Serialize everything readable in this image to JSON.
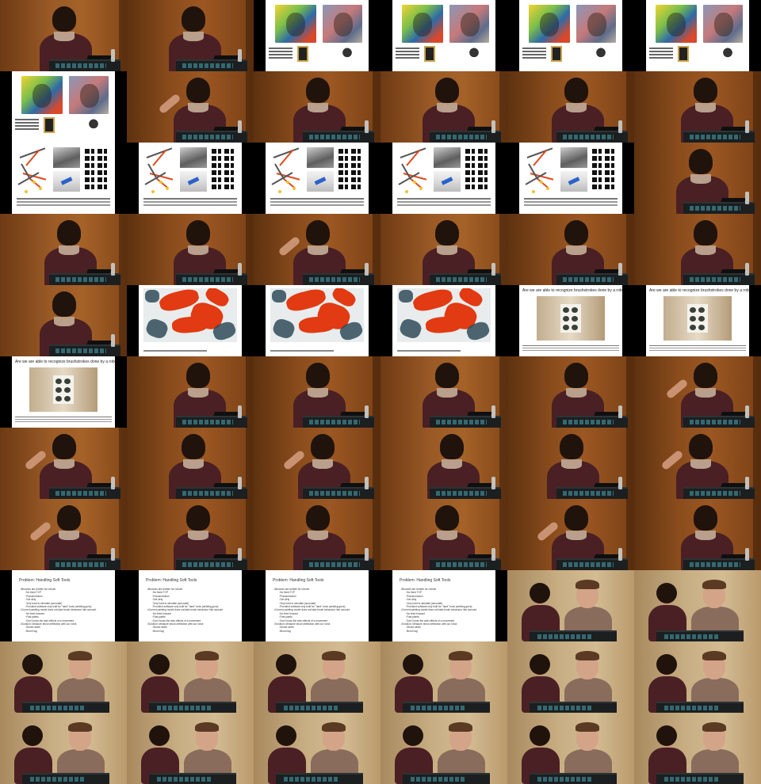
{
  "contact_sheet": {
    "columns": 6,
    "rows": 11,
    "frames": [
      "speaker",
      "speaker",
      "slide-portraits",
      "slide-portraits",
      "slide-portraits",
      "slide-portraits",
      "slide-portraits",
      "speaker-gesture",
      "speaker",
      "speaker",
      "speaker",
      "speaker",
      "slide-sketches",
      "slide-sketches",
      "slide-sketches",
      "slide-sketches",
      "slide-sketches",
      "speaker",
      "speaker",
      "speaker",
      "speaker-gesture",
      "speaker",
      "speaker",
      "speaker",
      "speaker",
      "slide-painting",
      "slide-painting",
      "slide-painting",
      "slide-brushstrokes",
      "slide-brushstrokes",
      "slide-brushstrokes",
      "speaker",
      "speaker",
      "speaker",
      "speaker",
      "speaker-gesture",
      "speaker-gesture",
      "speaker",
      "speaker-gesture",
      "speaker",
      "speaker",
      "speaker-gesture",
      "speaker-gesture",
      "speaker",
      "speaker",
      "speaker",
      "speaker-gesture",
      "speaker",
      "slide-text",
      "slide-text",
      "slide-text",
      "slide-text",
      "duo",
      "duo",
      "duo",
      "duo",
      "duo",
      "duo",
      "duo",
      "duo",
      "duo",
      "duo",
      "duo",
      "duo",
      "duo",
      "duo"
    ]
  },
  "slides": {
    "brushstrokes": {
      "title": "Are we are able to recognize brushstrokes done by a robot ?"
    },
    "text": {
      "title": "Problem: Handling Soft Tools",
      "items": [
        {
          "level": 1,
          "text": "Brushes are terrible for robots!"
        },
        {
          "level": 2,
          "text": "No fixed TCP"
        },
        {
          "level": 2,
          "text": "Pseudomotion"
        },
        {
          "level": 2,
          "text": "Get dirty"
        },
        {
          "level": 2,
          "text": "Very hard to simulate (accurate)"
        },
        {
          "level": 2,
          "text": "Provided software only built for \"hard\" tools (welding guns)"
        },
        {
          "level": 1,
          "text": "Current painting model does not take brush behaviour into account"
        },
        {
          "level": 2,
          "text": "No feed forward"
        },
        {
          "level": 2,
          "text": "Fast paints"
        },
        {
          "level": 2,
          "text": "Don't know the side-effects of a movement"
        },
        {
          "level": 1,
          "text": "Solution: Measure brush deflection with our robot"
        },
        {
          "level": 2,
          "text": "Stroke width"
        },
        {
          "level": 2,
          "text": "Brush lag"
        }
      ]
    }
  }
}
